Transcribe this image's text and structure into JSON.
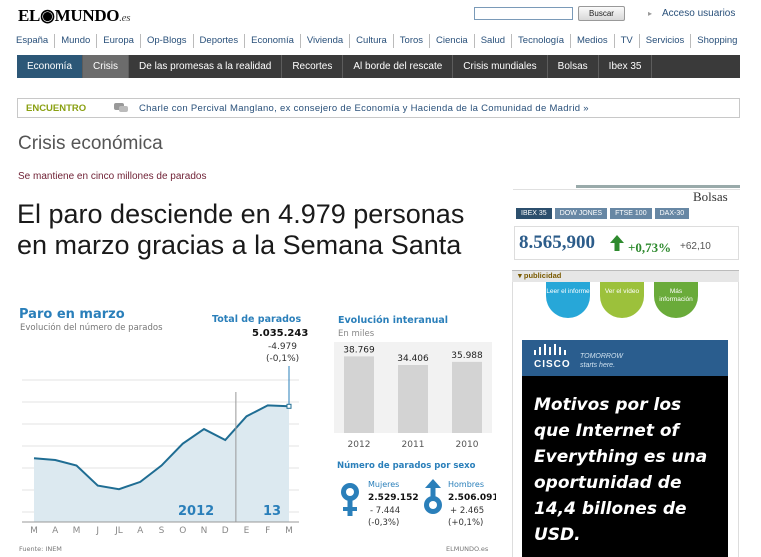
{
  "header": {
    "logo_text": "EL",
    "logo_text2": "MUNDO",
    "logo_suffix": ".es",
    "search_button": "Buscar",
    "access_link": "Acceso usuarios"
  },
  "main_nav": [
    "España",
    "Mundo",
    "Europa",
    "Op-Blogs",
    "Deportes",
    "Economía",
    "Vivienda",
    "Cultura",
    "Toros",
    "Ciencia",
    "Salud",
    "Tecnología",
    "Medios",
    "TV",
    "Servicios",
    "Shopping"
  ],
  "sub_nav": [
    "Economía",
    "Crisis",
    "De las promesas a la realidad",
    "Recortes",
    "Al borde del rescate",
    "Crisis mundiales",
    "Bolsas",
    "Ibex 35"
  ],
  "encuentro": {
    "label": "ENCUENTRO",
    "text": "Charle con Percival Manglano, ex consejero de Economía y Hacienda de la Comunidad de Madrid",
    "arrow": "»"
  },
  "section_title": "Crisis económica",
  "kicker": "Se mantiene en cinco millones de parados",
  "headline": "El paro desciende en 4.979 personas en marzo gracias a la Semana Santa",
  "chart_data": [
    {
      "type": "area",
      "title": "Paro en marzo",
      "subtitle": "Evolución del número de parados",
      "categories": [
        "M",
        "A",
        "M",
        "J",
        "JL",
        "A",
        "S",
        "O",
        "N",
        "D",
        "E",
        "F",
        "M"
      ],
      "values": [
        4.75,
        4.74,
        4.71,
        4.6,
        4.58,
        4.62,
        4.71,
        4.83,
        4.91,
        4.85,
        4.98,
        5.04,
        5.035
      ],
      "ylim": [
        4.4,
        5.3
      ],
      "periods": [
        "2012",
        "13"
      ],
      "callout": {
        "title": "Total de parados",
        "value": "5.035.243",
        "change": "-4.979",
        "pct": "(-0,1%)"
      },
      "source": "Fuente: INEM",
      "credit": "ELMUNDO.es"
    },
    {
      "type": "bar",
      "title": "Evolución interanual",
      "subtitle": "En miles",
      "categories": [
        "2012",
        "2011",
        "2010"
      ],
      "values": [
        38769,
        34406,
        35988
      ],
      "value_labels": [
        "38.769",
        "34.406",
        "35.988"
      ],
      "ylim": [
        0,
        42000
      ]
    }
  ],
  "sex_panel": {
    "title": "Número de parados por sexo",
    "women": {
      "label": "Mujeres",
      "value": "2.529.152",
      "change": "- 7.444",
      "pct": "(-0,3%)"
    },
    "men": {
      "label": "Hombres",
      "value": "2.506.091",
      "change": "+ 2.465",
      "pct": "(+0,1%)"
    }
  },
  "bolsas": {
    "title": "Bolsas",
    "tabs": [
      "IBEX 35",
      "DOW JONES",
      "FTSE 100",
      "DAX-30"
    ],
    "value": "8.565,900",
    "pct": "+0,73%",
    "points": "+62,10"
  },
  "ad": {
    "label": "publicidad",
    "buttons": [
      "Leer el informe",
      "Ver el vídeo",
      "Más información"
    ],
    "button_colors": [
      "#27a7d8",
      "#9cc13b",
      "#6aab3a"
    ],
    "brand": "CISCO",
    "tagline1": "TOMORROW",
    "tagline2": "starts here.",
    "text": "Motivos por los que Internet of Everything es una oportunidad de 14,4 billones de USD."
  },
  "colors": {
    "chart_blue": "#2a7fba",
    "area_fill": "#dce9f0",
    "bars": "#d3d3d3",
    "sub_nav_selected": "#2c5777"
  }
}
